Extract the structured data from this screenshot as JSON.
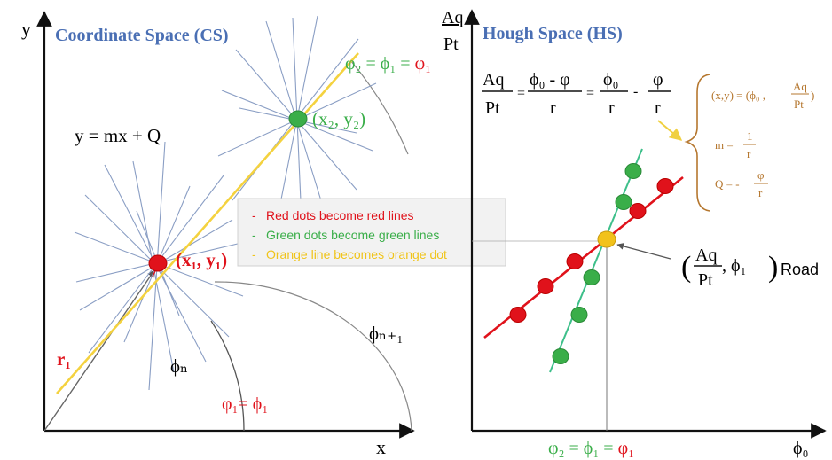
{
  "colors": {
    "red": "#e0121b",
    "green": "#3aae49",
    "orange_dot": "#f2c21b",
    "yellow_line": "#f4d23f",
    "title_blue": "#4a6fb4",
    "axis": "#111111",
    "fan_blue": "#8a9ec4",
    "eq_brown": "#b5772f",
    "green_line": "#3dbf8a"
  },
  "left_panel": {
    "title": "Coordinate Space (CS)",
    "y_axis_label": "y",
    "x_axis_label": "x",
    "line_equation": "y = mx + Q",
    "point1_label": "(x₁, y₁)",
    "point2_label": "(x₂, y₂)",
    "top_right_eq_green": "φ₂ = ϕ₁ = ",
    "top_right_eq_red": "φ₁",
    "r1_label": "r₁",
    "phi_n_label": "ϕₙ",
    "phi_n1_label": "ϕₙ₊₁",
    "bottom_eq": "φ₁= ϕ₁"
  },
  "legend": {
    "items": [
      {
        "bullet": "-",
        "text": "Red dots become red lines",
        "color": "#e0121b"
      },
      {
        "bullet": "-",
        "text": "Green dots become green lines",
        "color": "#3aae49"
      },
      {
        "bullet": "-",
        "text": "Orange line becomes orange dot",
        "color": "#f0c419"
      }
    ]
  },
  "right_panel": {
    "title": "Hough Space (HS)",
    "y_axis_num": "Aq",
    "y_axis_den": "Pt",
    "x_axis_label": "ϕ₀",
    "main_eq": {
      "lhs_num": "Aq",
      "lhs_den": "Pt",
      "t1_num": "ϕ₀ - φ",
      "t1_den": "r",
      "t2_num": "ϕ₀",
      "t2_den": "r",
      "t3_num": "φ",
      "t3_den": "r",
      "eq": "=",
      "minus": "-"
    },
    "brace_eqs": {
      "line1_prefix": "(x,y) = (ϕ₀ ,",
      "line1_num": "Aq",
      "line1_den": "Pt",
      "line1_suffix": ")",
      "line2_prefix": "m =",
      "line2_num": "1",
      "line2_den": "r",
      "line3_prefix": "Q = -",
      "line3_num": "φ",
      "line3_den": "r"
    },
    "road_label": {
      "paren_open": "(",
      "num": "Aq",
      "den": "Pt",
      "phi": ", ϕ₁",
      "paren_close": ")",
      "sub": "Road"
    },
    "bottom_eq_green": "φ₂ = ϕ₁ = ",
    "bottom_eq_red": "φ₁"
  }
}
